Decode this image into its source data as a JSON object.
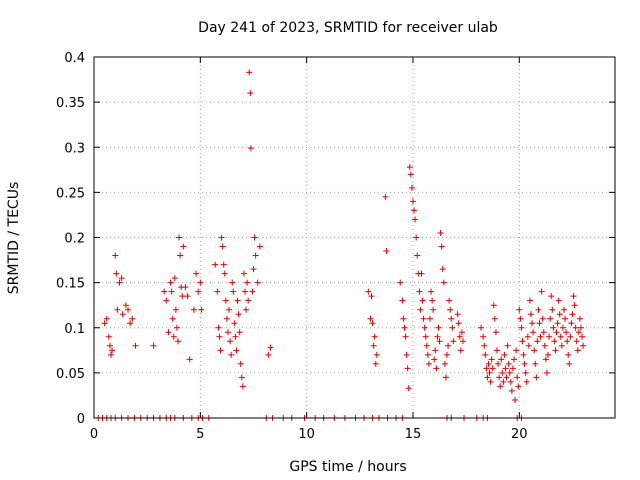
{
  "chart_data": {
    "type": "scatter",
    "title": "Day 241 of 2023, SRMTID for receiver ulab",
    "xlabel": "GPS time / hours",
    "ylabel": "SRMTID / TECUs",
    "xlim": [
      0,
      24.5
    ],
    "ylim": [
      0,
      0.4
    ],
    "xticks": [
      0,
      5,
      10,
      15,
      20
    ],
    "xtick_labels": [
      "0",
      "5",
      "10",
      "15",
      "20"
    ],
    "yticks": [
      0,
      0.05,
      0.1,
      0.15,
      0.2,
      0.25,
      0.3,
      0.35,
      0.4
    ],
    "ytick_labels": [
      "0",
      "0.05",
      "0.1",
      "0.15",
      "0.2",
      "0.25",
      "0.3",
      "0.35",
      "0.4"
    ],
    "grid": true,
    "marker": "+",
    "marker_color": "#e00000",
    "series": [
      {
        "name": "SRMTID",
        "points": [
          [
            0.2,
            0
          ],
          [
            0.4,
            0
          ],
          [
            0.6,
            0
          ],
          [
            0.8,
            0
          ],
          [
            1.0,
            0
          ],
          [
            1.3,
            0
          ],
          [
            1.6,
            0
          ],
          [
            1.9,
            0
          ],
          [
            2.2,
            0
          ],
          [
            2.5,
            0
          ],
          [
            2.8,
            0
          ],
          [
            3.1,
            0
          ],
          [
            3.4,
            0
          ],
          [
            3.6,
            0
          ],
          [
            3.8,
            0
          ],
          [
            4.2,
            0
          ],
          [
            4.6,
            0
          ],
          [
            4.9,
            0
          ],
          [
            5.1,
            0
          ],
          [
            5.4,
            0
          ],
          [
            8.1,
            0
          ],
          [
            8.4,
            0
          ],
          [
            8.9,
            0
          ],
          [
            9.3,
            0
          ],
          [
            9.9,
            0
          ],
          [
            10.4,
            0
          ],
          [
            10.8,
            0
          ],
          [
            11.3,
            0
          ],
          [
            11.8,
            0
          ],
          [
            12.3,
            0
          ],
          [
            12.7,
            0
          ],
          [
            13.1,
            0
          ],
          [
            13.4,
            0
          ],
          [
            13.8,
            0
          ],
          [
            14.2,
            0
          ],
          [
            14.5,
            0
          ],
          [
            16.6,
            0
          ],
          [
            16.8,
            0
          ],
          [
            17.4,
            0
          ],
          [
            18.0,
            0
          ],
          [
            18.3,
            0
          ],
          [
            18.5,
            0
          ],
          [
            19.9,
            0
          ],
          [
            20.1,
            0
          ],
          [
            0.5,
            0.105
          ],
          [
            0.6,
            0.11
          ],
          [
            0.7,
            0.09
          ],
          [
            0.75,
            0.08
          ],
          [
            0.8,
            0.07
          ],
          [
            0.85,
            0.075
          ],
          [
            1.0,
            0.18
          ],
          [
            1.05,
            0.16
          ],
          [
            1.1,
            0.12
          ],
          [
            1.2,
            0.15
          ],
          [
            1.3,
            0.155
          ],
          [
            1.35,
            0.115
          ],
          [
            1.5,
            0.125
          ],
          [
            1.6,
            0.12
          ],
          [
            1.7,
            0.105
          ],
          [
            1.8,
            0.11
          ],
          [
            1.95,
            0.08
          ],
          [
            2.8,
            0.08
          ],
          [
            3.3,
            0.14
          ],
          [
            3.4,
            0.13
          ],
          [
            3.5,
            0.095
          ],
          [
            3.6,
            0.15
          ],
          [
            3.65,
            0.14
          ],
          [
            3.7,
            0.11
          ],
          [
            3.75,
            0.09
          ],
          [
            3.8,
            0.155
          ],
          [
            3.85,
            0.12
          ],
          [
            3.9,
            0.1
          ],
          [
            3.95,
            0.085
          ],
          [
            4.0,
            0.2
          ],
          [
            4.05,
            0.18
          ],
          [
            4.1,
            0.145
          ],
          [
            4.15,
            0.135
          ],
          [
            4.2,
            0.19
          ],
          [
            4.3,
            0.145
          ],
          [
            4.4,
            0.135
          ],
          [
            4.5,
            0.065
          ],
          [
            4.7,
            0.12
          ],
          [
            4.8,
            0.16
          ],
          [
            4.9,
            0.14
          ],
          [
            5.0,
            0.15
          ],
          [
            5.05,
            0.12
          ],
          [
            5.7,
            0.17
          ],
          [
            5.8,
            0.14
          ],
          [
            5.85,
            0.1
          ],
          [
            5.9,
            0.09
          ],
          [
            5.95,
            0.075
          ],
          [
            6.0,
            0.2
          ],
          [
            6.05,
            0.19
          ],
          [
            6.1,
            0.17
          ],
          [
            6.15,
            0.16
          ],
          [
            6.2,
            0.13
          ],
          [
            6.25,
            0.11
          ],
          [
            6.3,
            0.095
          ],
          [
            6.35,
            0.12
          ],
          [
            6.4,
            0.085
          ],
          [
            6.45,
            0.07
          ],
          [
            6.5,
            0.15
          ],
          [
            6.55,
            0.14
          ],
          [
            6.6,
            0.105
          ],
          [
            6.65,
            0.09
          ],
          [
            6.7,
            0.075
          ],
          [
            6.75,
            0.13
          ],
          [
            6.8,
            0.115
          ],
          [
            6.85,
            0.095
          ],
          [
            6.9,
            0.06
          ],
          [
            6.95,
            0.045
          ],
          [
            7.0,
            0.035
          ],
          [
            7.05,
            0.16
          ],
          [
            7.1,
            0.14
          ],
          [
            7.15,
            0.12
          ],
          [
            7.2,
            0.15
          ],
          [
            7.25,
            0.13
          ],
          [
            7.3,
            0.383
          ],
          [
            7.35,
            0.36
          ],
          [
            7.38,
            0.299
          ],
          [
            7.45,
            0.14
          ],
          [
            7.5,
            0.165
          ],
          [
            7.55,
            0.2
          ],
          [
            7.6,
            0.18
          ],
          [
            7.7,
            0.15
          ],
          [
            7.8,
            0.19
          ],
          [
            8.2,
            0.07
          ],
          [
            8.3,
            0.078
          ],
          [
            12.9,
            0.14
          ],
          [
            13.0,
            0.11
          ],
          [
            13.05,
            0.135
          ],
          [
            13.1,
            0.105
          ],
          [
            13.15,
            0.08
          ],
          [
            13.2,
            0.09
          ],
          [
            13.25,
            0.06
          ],
          [
            13.3,
            0.07
          ],
          [
            13.7,
            0.245
          ],
          [
            13.75,
            0.185
          ],
          [
            14.4,
            0.15
          ],
          [
            14.5,
            0.13
          ],
          [
            14.55,
            0.11
          ],
          [
            14.6,
            0.1
          ],
          [
            14.65,
            0.09
          ],
          [
            14.7,
            0.07
          ],
          [
            14.75,
            0.055
          ],
          [
            14.8,
            0.033
          ],
          [
            14.85,
            0.278
          ],
          [
            14.9,
            0.27
          ],
          [
            14.95,
            0.255
          ],
          [
            15.0,
            0.24
          ],
          [
            15.05,
            0.23
          ],
          [
            15.1,
            0.22
          ],
          [
            15.15,
            0.2
          ],
          [
            15.2,
            0.18
          ],
          [
            15.25,
            0.16
          ],
          [
            15.3,
            0.14
          ],
          [
            15.35,
            0.12
          ],
          [
            15.4,
            0.16
          ],
          [
            15.45,
            0.13
          ],
          [
            15.5,
            0.11
          ],
          [
            15.55,
            0.1
          ],
          [
            15.6,
            0.09
          ],
          [
            15.65,
            0.08
          ],
          [
            15.7,
            0.07
          ],
          [
            15.75,
            0.06
          ],
          [
            15.8,
            0.11
          ],
          [
            15.85,
            0.14
          ],
          [
            15.9,
            0.13
          ],
          [
            15.95,
            0.12
          ],
          [
            16.0,
            0.065
          ],
          [
            16.05,
            0.075
          ],
          [
            16.1,
            0.055
          ],
          [
            16.15,
            0.09
          ],
          [
            16.2,
            0.1
          ],
          [
            16.25,
            0.085
          ],
          [
            16.3,
            0.205
          ],
          [
            16.35,
            0.19
          ],
          [
            16.4,
            0.165
          ],
          [
            16.45,
            0.15
          ],
          [
            16.5,
            0.06
          ],
          [
            16.55,
            0.045
          ],
          [
            16.6,
            0.07
          ],
          [
            16.65,
            0.08
          ],
          [
            16.7,
            0.13
          ],
          [
            16.75,
            0.12
          ],
          [
            16.8,
            0.11
          ],
          [
            16.85,
            0.1
          ],
          [
            16.9,
            0.085
          ],
          [
            17.1,
            0.115
          ],
          [
            17.15,
            0.105
          ],
          [
            17.2,
            0.09
          ],
          [
            17.25,
            0.075
          ],
          [
            17.3,
            0.095
          ],
          [
            17.35,
            0.085
          ],
          [
            18.2,
            0.1
          ],
          [
            18.3,
            0.09
          ],
          [
            18.35,
            0.08
          ],
          [
            18.4,
            0.07
          ],
          [
            18.45,
            0.055
          ],
          [
            18.5,
            0.045
          ],
          [
            18.55,
            0.06
          ],
          [
            18.6,
            0.05
          ],
          [
            18.65,
            0.04
          ],
          [
            18.7,
            0.065
          ],
          [
            18.75,
            0.055
          ],
          [
            18.8,
            0.125
          ],
          [
            18.85,
            0.11
          ],
          [
            18.9,
            0.095
          ],
          [
            18.95,
            0.075
          ],
          [
            19.0,
            0.06
          ],
          [
            19.05,
            0.045
          ],
          [
            19.1,
            0.035
          ],
          [
            19.15,
            0.065
          ],
          [
            19.2,
            0.05
          ],
          [
            19.25,
            0.04
          ],
          [
            19.3,
            0.07
          ],
          [
            19.35,
            0.055
          ],
          [
            19.4,
            0.045
          ],
          [
            19.45,
            0.08
          ],
          [
            19.5,
            0.06
          ],
          [
            19.55,
            0.05
          ],
          [
            19.6,
            0.04
          ],
          [
            19.65,
            0.03
          ],
          [
            19.7,
            0.055
          ],
          [
            19.75,
            0.065
          ],
          [
            19.8,
            0.02
          ],
          [
            19.85,
            0.075
          ],
          [
            19.9,
            0.045
          ],
          [
            19.95,
            0.035
          ],
          [
            20.0,
            0.12
          ],
          [
            20.05,
            0.11
          ],
          [
            20.1,
            0.1
          ],
          [
            20.15,
            0.085
          ],
          [
            20.2,
            0.07
          ],
          [
            20.25,
            0.06
          ],
          [
            20.3,
            0.05
          ],
          [
            20.35,
            0.04
          ],
          [
            20.4,
            0.09
          ],
          [
            20.45,
            0.08
          ],
          [
            20.5,
            0.13
          ],
          [
            20.55,
            0.115
          ],
          [
            20.6,
            0.105
          ],
          [
            20.65,
            0.095
          ],
          [
            20.7,
            0.075
          ],
          [
            20.75,
            0.06
          ],
          [
            20.8,
            0.045
          ],
          [
            20.85,
            0.085
          ],
          [
            20.9,
            0.12
          ],
          [
            20.95,
            0.105
          ],
          [
            21.0,
            0.09
          ],
          [
            21.05,
            0.14
          ],
          [
            21.1,
            0.11
          ],
          [
            21.15,
            0.095
          ],
          [
            21.2,
            0.08
          ],
          [
            21.25,
            0.065
          ],
          [
            21.3,
            0.05
          ],
          [
            21.35,
            0.07
          ],
          [
            21.4,
            0.09
          ],
          [
            21.45,
            0.11
          ],
          [
            21.5,
            0.135
          ],
          [
            21.55,
            0.12
          ],
          [
            21.6,
            0.1
          ],
          [
            21.65,
            0.085
          ],
          [
            21.7,
            0.075
          ],
          [
            21.75,
            0.095
          ],
          [
            21.8,
            0.105
          ],
          [
            21.85,
            0.13
          ],
          [
            21.9,
            0.115
          ],
          [
            21.95,
            0.09
          ],
          [
            22.0,
            0.08
          ],
          [
            22.05,
            0.1
          ],
          [
            22.1,
            0.12
          ],
          [
            22.15,
            0.11
          ],
          [
            22.2,
            0.095
          ],
          [
            22.25,
            0.085
          ],
          [
            22.3,
            0.07
          ],
          [
            22.35,
            0.06
          ],
          [
            22.4,
            0.09
          ],
          [
            22.45,
            0.105
          ],
          [
            22.5,
            0.115
          ],
          [
            22.55,
            0.135
          ],
          [
            22.6,
            0.125
          ],
          [
            22.65,
            0.1
          ],
          [
            22.7,
            0.085
          ],
          [
            22.75,
            0.075
          ],
          [
            22.8,
            0.095
          ],
          [
            22.85,
            0.11
          ],
          [
            22.9,
            0.1
          ],
          [
            22.95,
            0.09
          ],
          [
            23.0,
            0.08
          ]
        ]
      }
    ]
  }
}
